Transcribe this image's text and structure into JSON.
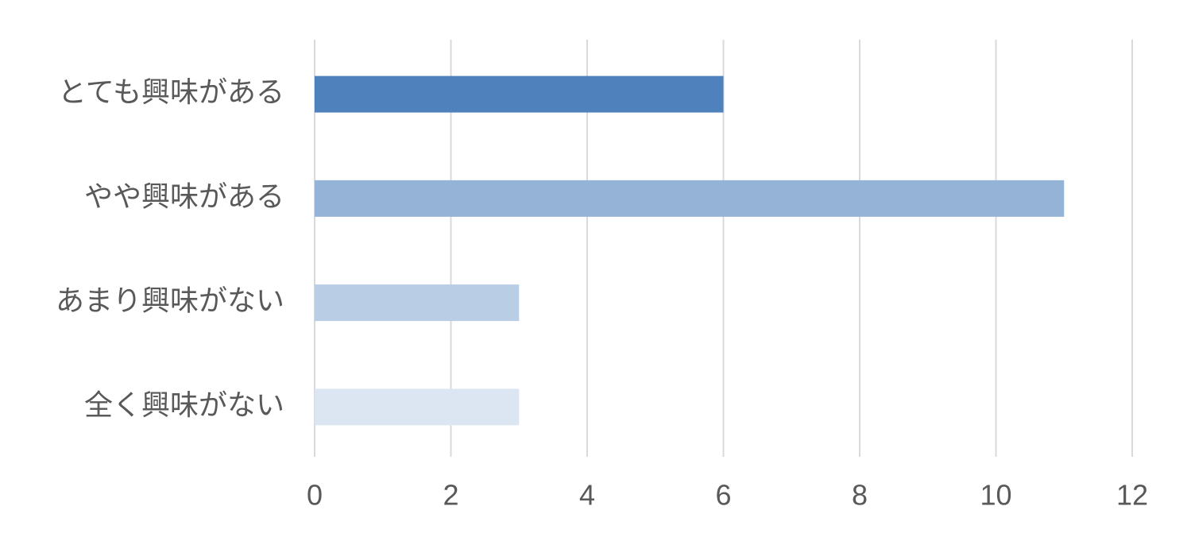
{
  "chart_data": {
    "type": "barh",
    "categories": [
      "とても興味がある",
      "やや興味がある",
      "あまり興味がない",
      "全く興味がない"
    ],
    "values": [
      6,
      11,
      3,
      3
    ],
    "colors": [
      "#4f81bd",
      "#95b3d7",
      "#b9cde5",
      "#dce6f2"
    ],
    "xlim": [
      0,
      12
    ],
    "xticks": [
      0,
      2,
      4,
      6,
      8,
      10,
      12
    ],
    "grid": true
  }
}
